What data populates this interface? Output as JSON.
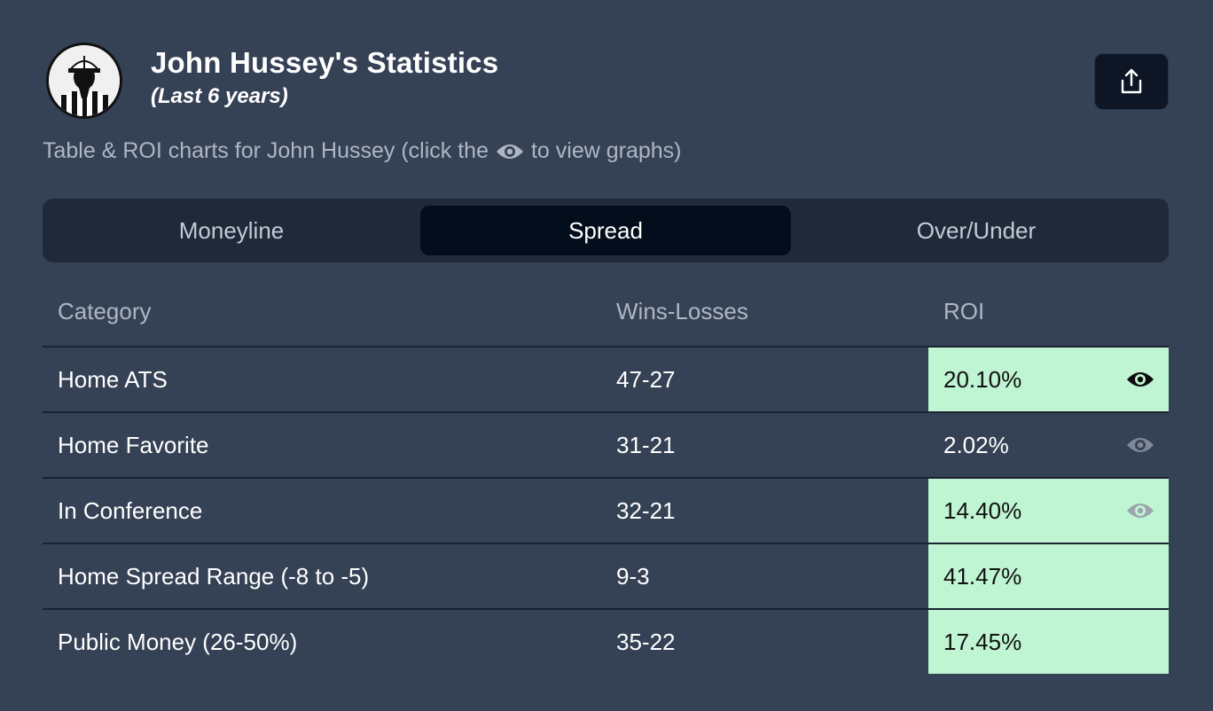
{
  "header": {
    "title": "John Hussey's Statistics",
    "subtitle": "(Last 6 years)",
    "share_icon": "share-icon",
    "avatar_icon": "referee-avatar"
  },
  "description": {
    "before": "Table & ROI charts for John Hussey (click the",
    "icon": "eye-icon",
    "after": "to view graphs)"
  },
  "tabs": [
    {
      "label": "Moneyline",
      "active": false
    },
    {
      "label": "Spread",
      "active": true
    },
    {
      "label": "Over/Under",
      "active": false
    }
  ],
  "table": {
    "columns": {
      "category": "Category",
      "wins_losses": "Wins-Losses",
      "roi": "ROI"
    },
    "rows": [
      {
        "category": "Home ATS",
        "wins_losses": "47-27",
        "roi": "20.10%",
        "positive": true,
        "eye": "dark"
      },
      {
        "category": "Home Favorite",
        "wins_losses": "31-21",
        "roi": "2.02%",
        "positive": false,
        "eye": "muted"
      },
      {
        "category": "In Conference",
        "wins_losses": "32-21",
        "roi": "14.40%",
        "positive": true,
        "eye": "muted"
      },
      {
        "category": "Home Spread Range (-8 to -5)",
        "wins_losses": "9-3",
        "roi": "41.47%",
        "positive": true,
        "eye": "none"
      },
      {
        "category": "Public Money (26-50%)",
        "wins_losses": "35-22",
        "roi": "17.45%",
        "positive": true,
        "eye": "none"
      }
    ]
  },
  "colors": {
    "background": "#354155",
    "tab_bar": "#1f293a",
    "active_tab": "#040d1b",
    "positive_roi": "#bff5d2",
    "muted_text": "#aeb6c3"
  }
}
